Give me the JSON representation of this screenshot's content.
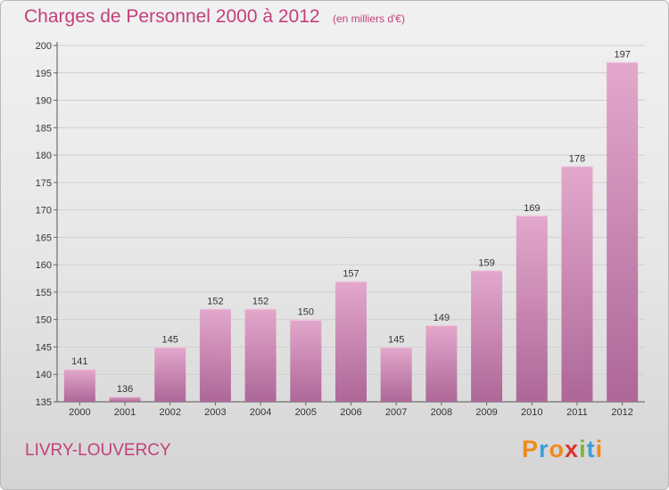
{
  "header": {
    "title": "Charges de Personnel 2000 à 2012",
    "subtitle": "(en milliers d'€)"
  },
  "footer": {
    "commune": "LIVRY-LOUVERCY",
    "logo_text": "Proxiti",
    "logo_colors": [
      "#f08a1c",
      "#3aa0d8",
      "#f08a1c",
      "#d9342b",
      "#7fb536",
      "#3aa0d8",
      "#f08a1c"
    ]
  },
  "colors": {
    "title": "#c2407a",
    "bar_top": "#e3a8cc",
    "bar_bottom": "#ad6797",
    "bar_edge": "#f2d3e6"
  },
  "chart_data": {
    "type": "bar",
    "title": "Charges de Personnel 2000 à 2012",
    "subtitle": "(en milliers d'€)",
    "categories": [
      "2000",
      "2001",
      "2002",
      "2003",
      "2004",
      "2005",
      "2006",
      "2007",
      "2008",
      "2009",
      "2010",
      "2011",
      "2012"
    ],
    "values": [
      141,
      136,
      145,
      152,
      152,
      150,
      157,
      145,
      149,
      159,
      169,
      178,
      197
    ],
    "ylim": [
      135,
      200
    ],
    "yticks": [
      135,
      140,
      145,
      150,
      155,
      160,
      165,
      170,
      175,
      180,
      185,
      190,
      195,
      200
    ],
    "grid": true,
    "data_labels": true
  }
}
